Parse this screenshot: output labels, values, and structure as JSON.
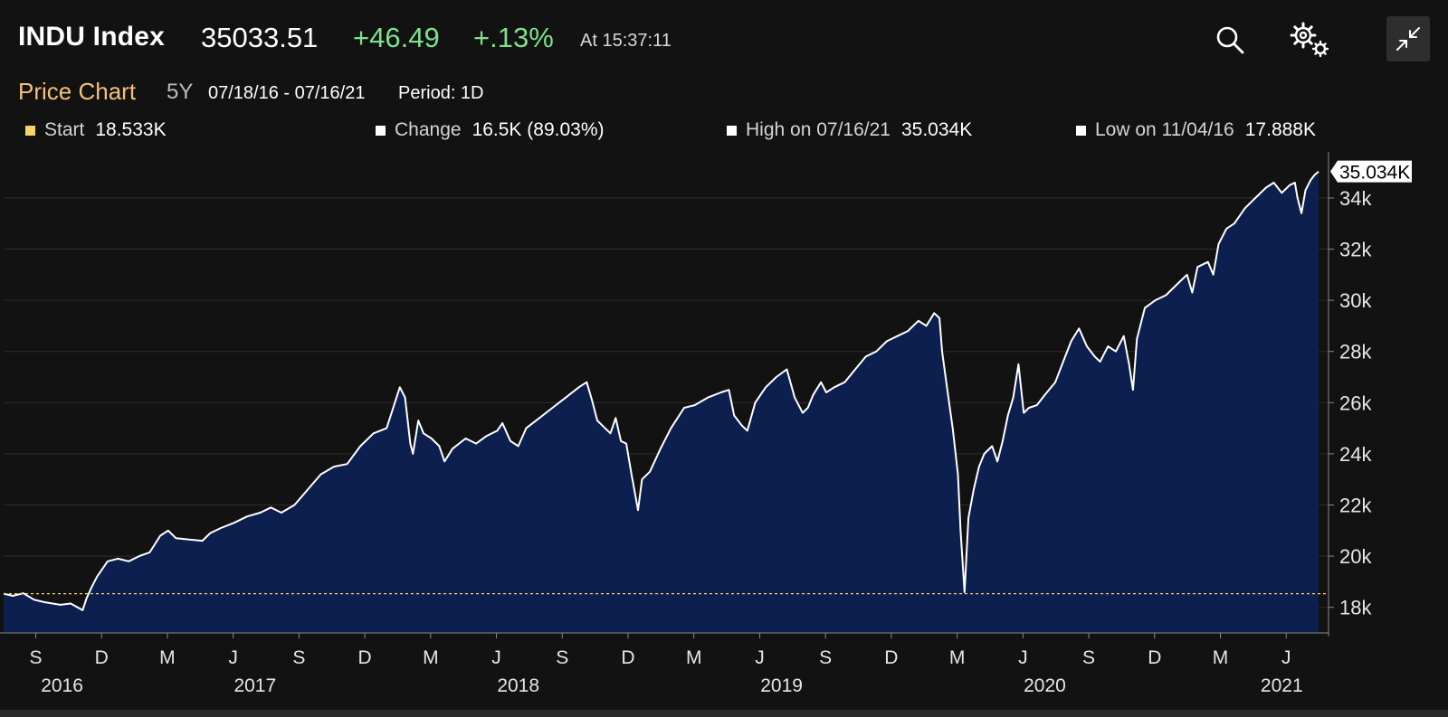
{
  "header": {
    "ticker": "INDU Index",
    "price": "35033.51",
    "change": "+46.49",
    "change_pct": "+.13%",
    "as_of": "At 15:37:11",
    "icons": [
      "search-icon",
      "settings-gears-icon",
      "collapse-arrows-icon"
    ]
  },
  "subheader": {
    "title": "Price Chart",
    "range": "5Y",
    "dates": "07/18/16 - 07/16/21",
    "period": "Period: 1D"
  },
  "stats": [
    {
      "label": "Start",
      "value": "18.533K",
      "color": "#f6d36b"
    },
    {
      "label": "Change",
      "value": "16.5K (89.03%)",
      "color": "#ffffff"
    },
    {
      "label": "High on 07/16/21",
      "value": "35.034K",
      "color": "#ffffff"
    },
    {
      "label": "Low on 11/04/16",
      "value": "17.888K",
      "color": "#ffffff"
    }
  ],
  "colors": {
    "background": "#121212",
    "area_fill": "#0c1f4f",
    "line": "#ffffff",
    "positive": "#7ee08a",
    "accent": "#f3c17a",
    "start_line": "#f6d36b"
  },
  "chart_data": {
    "type": "area",
    "title": "Price Chart",
    "ylim": [
      17000,
      35800
    ],
    "yticks": [
      18000,
      20000,
      22000,
      24000,
      26000,
      28000,
      30000,
      32000,
      34000
    ],
    "ytick_labels": [
      "18k",
      "20k",
      "22k",
      "24k",
      "26k",
      "28k",
      "30k",
      "32k",
      "34k"
    ],
    "x_range": [
      2016.545,
      2021.54
    ],
    "xticks": [
      {
        "t": 2016.667,
        "label": "S"
      },
      {
        "t": 2016.917,
        "label": "D"
      },
      {
        "t": 2017.167,
        "label": "M"
      },
      {
        "t": 2017.417,
        "label": "J"
      },
      {
        "t": 2017.667,
        "label": "S"
      },
      {
        "t": 2017.917,
        "label": "D"
      },
      {
        "t": 2018.167,
        "label": "M"
      },
      {
        "t": 2018.417,
        "label": "J"
      },
      {
        "t": 2018.667,
        "label": "S"
      },
      {
        "t": 2018.917,
        "label": "D"
      },
      {
        "t": 2019.167,
        "label": "M"
      },
      {
        "t": 2019.417,
        "label": "J"
      },
      {
        "t": 2019.667,
        "label": "S"
      },
      {
        "t": 2019.917,
        "label": "D"
      },
      {
        "t": 2020.167,
        "label": "M"
      },
      {
        "t": 2020.417,
        "label": "J"
      },
      {
        "t": 2020.667,
        "label": "S"
      },
      {
        "t": 2020.917,
        "label": "D"
      },
      {
        "t": 2021.167,
        "label": "M"
      },
      {
        "t": 2021.417,
        "label": "J"
      }
    ],
    "year_labels": [
      {
        "t": 2016.767,
        "label": "2016"
      },
      {
        "t": 2017.5,
        "label": "2017"
      },
      {
        "t": 2018.5,
        "label": "2018"
      },
      {
        "t": 2019.5,
        "label": "2019"
      },
      {
        "t": 2020.5,
        "label": "2020"
      },
      {
        "t": 2021.4,
        "label": "2021"
      }
    ],
    "start_value": 18533,
    "last_value": 35034,
    "last_label": "35.034K",
    "series": [
      {
        "name": "INDU Index",
        "points": [
          [
            2016.545,
            18533
          ],
          [
            2016.58,
            18450
          ],
          [
            2016.62,
            18550
          ],
          [
            2016.66,
            18300
          ],
          [
            2016.7,
            18200
          ],
          [
            2016.76,
            18100
          ],
          [
            2016.8,
            18150
          ],
          [
            2016.845,
            17888
          ],
          [
            2016.86,
            18350
          ],
          [
            2016.88,
            18800
          ],
          [
            2016.9,
            19200
          ],
          [
            2016.94,
            19800
          ],
          [
            2016.98,
            19900
          ],
          [
            2017.02,
            19800
          ],
          [
            2017.06,
            20000
          ],
          [
            2017.1,
            20150
          ],
          [
            2017.14,
            20800
          ],
          [
            2017.17,
            21000
          ],
          [
            2017.2,
            20700
          ],
          [
            2017.25,
            20650
          ],
          [
            2017.3,
            20600
          ],
          [
            2017.33,
            20900
          ],
          [
            2017.37,
            21100
          ],
          [
            2017.42,
            21300
          ],
          [
            2017.47,
            21550
          ],
          [
            2017.52,
            21700
          ],
          [
            2017.56,
            21900
          ],
          [
            2017.6,
            21700
          ],
          [
            2017.65,
            22000
          ],
          [
            2017.7,
            22600
          ],
          [
            2017.75,
            23200
          ],
          [
            2017.8,
            23500
          ],
          [
            2017.85,
            23600
          ],
          [
            2017.9,
            24300
          ],
          [
            2017.95,
            24800
          ],
          [
            2018.0,
            25000
          ],
          [
            2018.05,
            26600
          ],
          [
            2018.07,
            26200
          ],
          [
            2018.09,
            24400
          ],
          [
            2018.1,
            24000
          ],
          [
            2018.12,
            25300
          ],
          [
            2018.14,
            24800
          ],
          [
            2018.17,
            24600
          ],
          [
            2018.2,
            24300
          ],
          [
            2018.22,
            23700
          ],
          [
            2018.25,
            24200
          ],
          [
            2018.3,
            24600
          ],
          [
            2018.34,
            24400
          ],
          [
            2018.38,
            24700
          ],
          [
            2018.42,
            24900
          ],
          [
            2018.44,
            25200
          ],
          [
            2018.47,
            24500
          ],
          [
            2018.5,
            24300
          ],
          [
            2018.53,
            25000
          ],
          [
            2018.58,
            25400
          ],
          [
            2018.63,
            25800
          ],
          [
            2018.68,
            26200
          ],
          [
            2018.73,
            26600
          ],
          [
            2018.76,
            26800
          ],
          [
            2018.78,
            26100
          ],
          [
            2018.8,
            25300
          ],
          [
            2018.82,
            25100
          ],
          [
            2018.85,
            24800
          ],
          [
            2018.87,
            25400
          ],
          [
            2018.89,
            24500
          ],
          [
            2018.91,
            24400
          ],
          [
            2018.93,
            23200
          ],
          [
            2018.955,
            21800
          ],
          [
            2018.97,
            23000
          ],
          [
            2019.0,
            23300
          ],
          [
            2019.04,
            24200
          ],
          [
            2019.08,
            25000
          ],
          [
            2019.13,
            25800
          ],
          [
            2019.17,
            25900
          ],
          [
            2019.22,
            26200
          ],
          [
            2019.27,
            26400
          ],
          [
            2019.3,
            26500
          ],
          [
            2019.32,
            25500
          ],
          [
            2019.35,
            25100
          ],
          [
            2019.37,
            24900
          ],
          [
            2019.4,
            26000
          ],
          [
            2019.44,
            26600
          ],
          [
            2019.48,
            27000
          ],
          [
            2019.52,
            27300
          ],
          [
            2019.55,
            26200
          ],
          [
            2019.58,
            25600
          ],
          [
            2019.6,
            25800
          ],
          [
            2019.62,
            26300
          ],
          [
            2019.65,
            26800
          ],
          [
            2019.67,
            26400
          ],
          [
            2019.7,
            26600
          ],
          [
            2019.74,
            26800
          ],
          [
            2019.78,
            27300
          ],
          [
            2019.82,
            27800
          ],
          [
            2019.86,
            28000
          ],
          [
            2019.9,
            28400
          ],
          [
            2019.94,
            28600
          ],
          [
            2019.98,
            28800
          ],
          [
            2020.02,
            29200
          ],
          [
            2020.05,
            29000
          ],
          [
            2020.08,
            29500
          ],
          [
            2020.1,
            29300
          ],
          [
            2020.11,
            28000
          ],
          [
            2020.13,
            26500
          ],
          [
            2020.15,
            25000
          ],
          [
            2020.17,
            23200
          ],
          [
            2020.18,
            21000
          ],
          [
            2020.195,
            18590
          ],
          [
            2020.21,
            21500
          ],
          [
            2020.23,
            22600
          ],
          [
            2020.25,
            23500
          ],
          [
            2020.27,
            24000
          ],
          [
            2020.3,
            24300
          ],
          [
            2020.32,
            23700
          ],
          [
            2020.34,
            24500
          ],
          [
            2020.36,
            25500
          ],
          [
            2020.38,
            26200
          ],
          [
            2020.4,
            27500
          ],
          [
            2020.42,
            25600
          ],
          [
            2020.44,
            25800
          ],
          [
            2020.47,
            25900
          ],
          [
            2020.5,
            26300
          ],
          [
            2020.54,
            26800
          ],
          [
            2020.57,
            27600
          ],
          [
            2020.6,
            28400
          ],
          [
            2020.63,
            28900
          ],
          [
            2020.66,
            28200
          ],
          [
            2020.69,
            27800
          ],
          [
            2020.71,
            27600
          ],
          [
            2020.74,
            28200
          ],
          [
            2020.77,
            28000
          ],
          [
            2020.8,
            28600
          ],
          [
            2020.82,
            27500
          ],
          [
            2020.835,
            26500
          ],
          [
            2020.85,
            28500
          ],
          [
            2020.88,
            29700
          ],
          [
            2020.92,
            30000
          ],
          [
            2020.96,
            30200
          ],
          [
            2021.0,
            30600
          ],
          [
            2021.04,
            31000
          ],
          [
            2021.06,
            30300
          ],
          [
            2021.08,
            31300
          ],
          [
            2021.12,
            31500
          ],
          [
            2021.14,
            31000
          ],
          [
            2021.16,
            32200
          ],
          [
            2021.19,
            32800
          ],
          [
            2021.22,
            33000
          ],
          [
            2021.26,
            33600
          ],
          [
            2021.3,
            34000
          ],
          [
            2021.34,
            34400
          ],
          [
            2021.37,
            34600
          ],
          [
            2021.4,
            34200
          ],
          [
            2021.43,
            34500
          ],
          [
            2021.45,
            34600
          ],
          [
            2021.46,
            34000
          ],
          [
            2021.475,
            33400
          ],
          [
            2021.49,
            34300
          ],
          [
            2021.51,
            34700
          ],
          [
            2021.525,
            34900
          ],
          [
            2021.54,
            35034
          ]
        ]
      }
    ]
  }
}
